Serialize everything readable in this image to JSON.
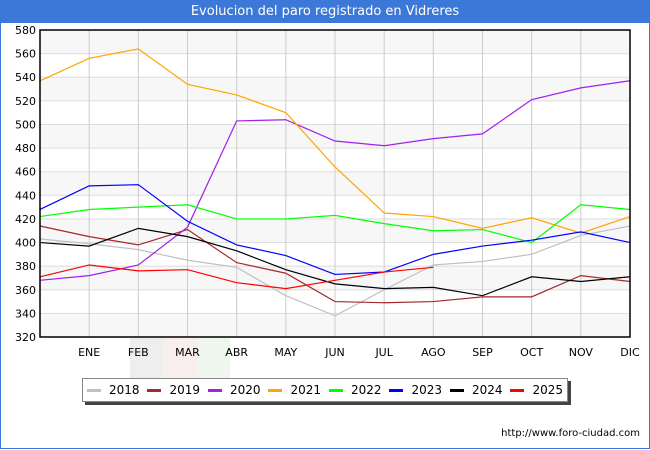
{
  "title": "Evolucion del paro registrado en Vidreres",
  "footer": "http://www.foro-ciudad.com",
  "chart_data": {
    "type": "line",
    "title": "Evolucion del paro registrado en Vidreres",
    "xlabel": "",
    "ylabel": "",
    "categories": [
      "",
      "ENE",
      "FEB",
      "MAR",
      "ABR",
      "MAY",
      "JUN",
      "JUL",
      "AGO",
      "SEP",
      "OCT",
      "NOV",
      "DIC"
    ],
    "ylim": [
      320,
      580
    ],
    "yticks": [
      320,
      340,
      360,
      380,
      400,
      420,
      440,
      460,
      480,
      500,
      520,
      540,
      560,
      580
    ],
    "grid": true,
    "legend_position": "bottom",
    "series": [
      {
        "name": "2018",
        "color": "#c0c0c0",
        "values": [
          403,
          399,
          394,
          385,
          379,
          355,
          338,
          360,
          381,
          384,
          390,
          406,
          414
        ]
      },
      {
        "name": "2019",
        "color": "#a52a2a",
        "values": [
          414,
          405,
          398,
          411,
          383,
          374,
          350,
          349,
          350,
          354,
          354,
          372,
          367
        ]
      },
      {
        "name": "2020",
        "color": "#a020f0",
        "values": [
          368,
          372,
          381,
          413,
          503,
          504,
          486,
          482,
          488,
          492,
          521,
          531,
          537
        ]
      },
      {
        "name": "2021",
        "color": "#ffa500",
        "values": [
          537,
          556,
          564,
          534,
          525,
          510,
          464,
          425,
          422,
          412,
          421,
          408,
          422
        ]
      },
      {
        "name": "2022",
        "color": "#00ff00",
        "values": [
          422,
          428,
          430,
          432,
          420,
          420,
          423,
          416,
          410,
          411,
          400,
          432,
          428
        ]
      },
      {
        "name": "2023",
        "color": "#0000ff",
        "values": [
          428,
          448,
          449,
          418,
          398,
          389,
          373,
          375,
          390,
          397,
          402,
          409,
          400
        ]
      },
      {
        "name": "2024",
        "color": "#000000",
        "values": [
          400,
          397,
          412,
          405,
          393,
          377,
          365,
          361,
          362,
          355,
          371,
          367,
          371
        ]
      },
      {
        "name": "2025",
        "color": "#ff0000",
        "values": [
          371,
          381,
          376,
          377,
          366,
          361,
          368,
          375,
          379
        ]
      }
    ]
  }
}
